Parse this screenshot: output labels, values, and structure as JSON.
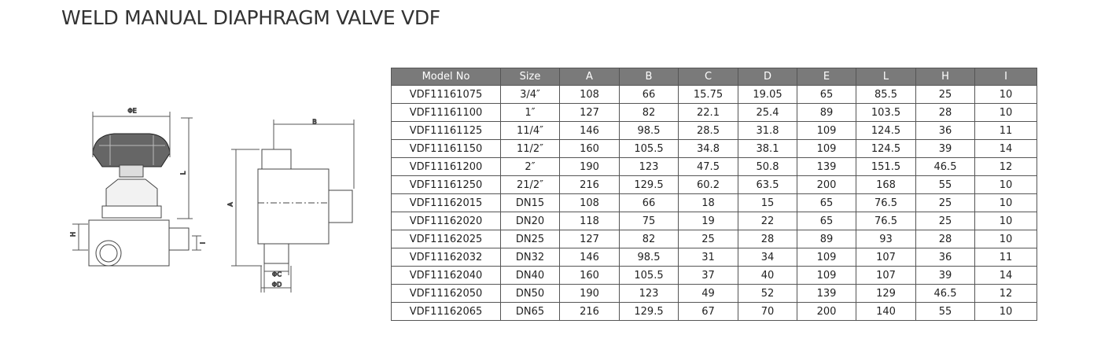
{
  "header": {
    "title": "WELD MANUAL DIAPHRAGM VALVE VDF"
  },
  "drawing": {
    "labels": {
      "e": "ΦE",
      "l": "L",
      "h": "H",
      "i": "I",
      "b": "B",
      "a": "A",
      "c": "ΦC",
      "d": "ΦD"
    }
  },
  "table": {
    "header": [
      "Model No",
      "Size",
      "A",
      "B",
      "C",
      "D",
      "E",
      "L",
      "H",
      "I"
    ],
    "rows": [
      [
        "VDF11161075",
        "3/4″",
        108,
        66,
        15.75,
        19.05,
        65,
        85.5,
        25,
        10
      ],
      [
        "VDF11161100",
        "1″",
        127,
        82,
        22.1,
        25.4,
        89,
        103.5,
        28,
        10
      ],
      [
        "VDF11161125",
        "11/4″",
        146,
        98.5,
        28.5,
        31.8,
        109,
        124.5,
        36,
        11
      ],
      [
        "VDF11161150",
        "11/2″",
        160,
        105.5,
        34.8,
        38.1,
        109,
        124.5,
        39,
        14
      ],
      [
        "VDF11161200",
        "2″",
        190,
        123,
        47.5,
        50.8,
        139,
        151.5,
        46.5,
        12
      ],
      [
        "VDF11161250",
        "21/2″",
        216,
        129.5,
        60.2,
        63.5,
        200,
        168,
        55,
        10
      ],
      [
        "VDF11162015",
        "DN15",
        108,
        66,
        18,
        15,
        65,
        76.5,
        25,
        10
      ],
      [
        "VDF11162020",
        "DN20",
        118,
        75,
        19,
        22,
        65,
        76.5,
        25,
        10
      ],
      [
        "VDF11162025",
        "DN25",
        127,
        82,
        25,
        28,
        89,
        93,
        28,
        10
      ],
      [
        "VDF11162032",
        "DN32",
        146,
        98.5,
        31,
        34,
        109,
        107,
        36,
        11
      ],
      [
        "VDF11162040",
        "DN40",
        160,
        105.5,
        37,
        40,
        109,
        107,
        39,
        14
      ],
      [
        "VDF11162050",
        "DN50",
        190,
        123,
        49,
        52,
        139,
        129,
        46.5,
        12
      ],
      [
        "VDF11162065",
        "DN65",
        216,
        129.5,
        67,
        70,
        200,
        140,
        55,
        10
      ]
    ]
  }
}
